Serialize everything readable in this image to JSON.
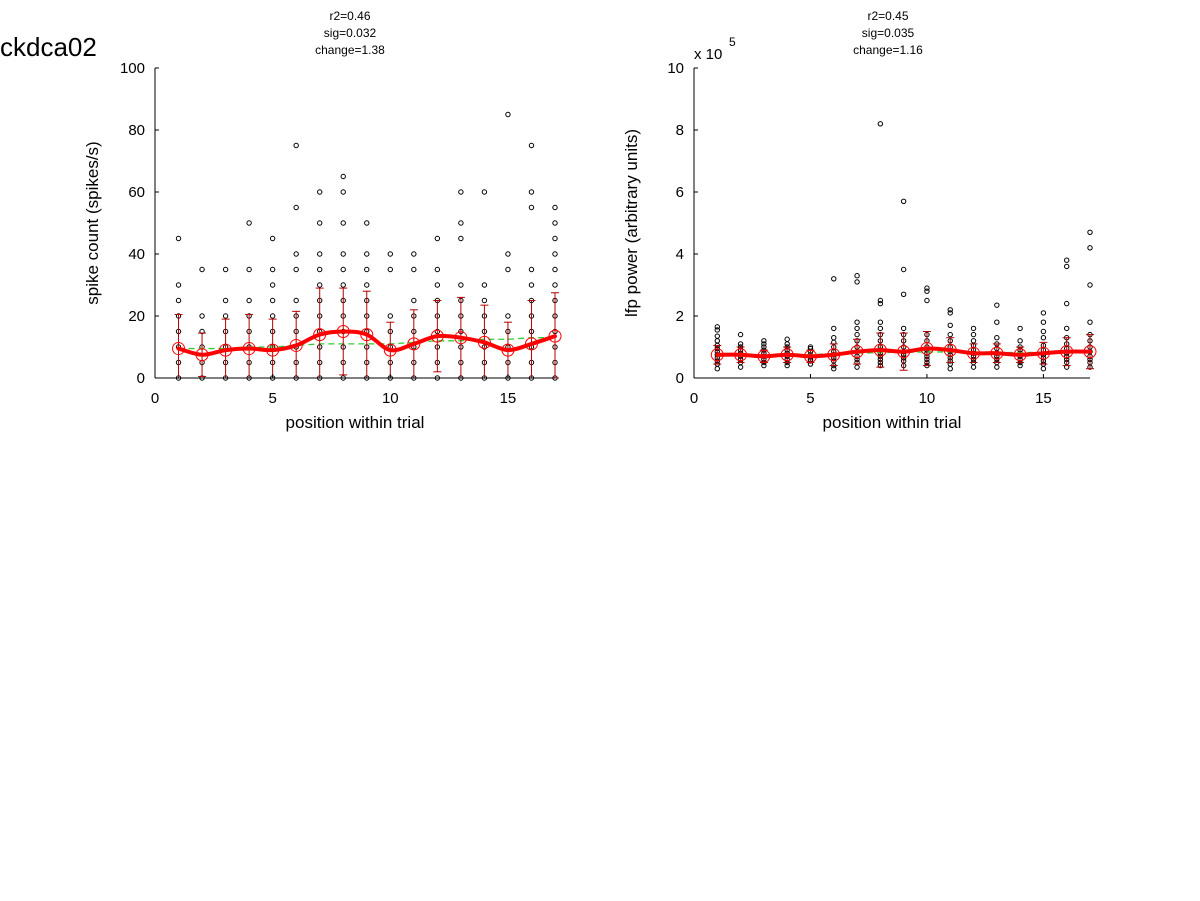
{
  "figure": {
    "title": "ckdca02"
  },
  "chart_data": [
    {
      "type": "scatter",
      "stats": [
        "r2=0.46",
        "sig=0.032",
        "change=1.38"
      ],
      "xlabel": "position within trial",
      "ylabel": "spike count (spikes/s)",
      "xlim": [
        0,
        17
      ],
      "ylim": [
        0,
        100
      ],
      "xticks": [
        0,
        5,
        10,
        15
      ],
      "yticks": [
        0,
        20,
        40,
        60,
        80,
        100
      ],
      "exponent_label": "",
      "positions": [
        1,
        2,
        3,
        4,
        5,
        6,
        7,
        8,
        9,
        10,
        11,
        12,
        13,
        14,
        15,
        16,
        17
      ],
      "means": [
        9.5,
        7.5,
        9,
        9.5,
        9,
        10.5,
        14,
        15,
        14,
        9,
        11,
        13.5,
        13,
        11.5,
        9,
        11,
        13.5
      ],
      "sd": [
        11,
        7,
        10,
        11,
        10,
        11,
        15,
        14,
        14,
        9,
        11,
        11.5,
        13,
        12,
        9,
        14,
        14
      ],
      "trend": [
        9.5,
        9.5,
        9.5,
        10,
        10,
        10.5,
        11,
        11,
        11,
        11,
        11.5,
        12,
        12,
        12.5,
        12.5,
        13,
        13
      ],
      "observations": [
        [
          0,
          5,
          10,
          15,
          20,
          25,
          30,
          45
        ],
        [
          0,
          5,
          10,
          15,
          20,
          35
        ],
        [
          0,
          5,
          10,
          15,
          20,
          25,
          35
        ],
        [
          0,
          5,
          10,
          15,
          20,
          25,
          35,
          50
        ],
        [
          0,
          5,
          10,
          15,
          20,
          25,
          30,
          35,
          45
        ],
        [
          0,
          5,
          10,
          15,
          20,
          25,
          35,
          40,
          55,
          75
        ],
        [
          0,
          5,
          10,
          15,
          20,
          25,
          30,
          35,
          40,
          50,
          60
        ],
        [
          0,
          5,
          10,
          15,
          20,
          25,
          30,
          35,
          40,
          50,
          60,
          65
        ],
        [
          0,
          5,
          10,
          15,
          20,
          25,
          30,
          35,
          40,
          50
        ],
        [
          0,
          5,
          10,
          15,
          20,
          35,
          40
        ],
        [
          0,
          5,
          10,
          15,
          20,
          25,
          35,
          40
        ],
        [
          0,
          5,
          10,
          15,
          20,
          25,
          30,
          35,
          45
        ],
        [
          0,
          5,
          10,
          15,
          20,
          25,
          30,
          45,
          50,
          60
        ],
        [
          0,
          5,
          10,
          15,
          20,
          25,
          30,
          60
        ],
        [
          0,
          5,
          10,
          15,
          20,
          35,
          40,
          85
        ],
        [
          0,
          5,
          10,
          15,
          20,
          25,
          30,
          35,
          55,
          60,
          75
        ],
        [
          0,
          5,
          10,
          15,
          20,
          25,
          30,
          35,
          40,
          45,
          50,
          55
        ]
      ],
      "colors": {
        "mean_line": "#ff0000",
        "error_bar": "#b40000",
        "trend_line": "#33cc33",
        "points": "#000000"
      }
    },
    {
      "type": "scatter",
      "stats": [
        "r2=0.45",
        "sig=0.035",
        "change=1.16"
      ],
      "xlabel": "position within trial",
      "ylabel": "lfp power (arbitrary units)",
      "xlim": [
        0,
        17
      ],
      "ylim": [
        0,
        10
      ],
      "xticks": [
        0,
        5,
        10,
        15
      ],
      "yticks": [
        0,
        2,
        4,
        6,
        8,
        10
      ],
      "exponent_label": "x 10",
      "exponent_power": "5",
      "positions": [
        1,
        2,
        3,
        4,
        5,
        6,
        7,
        8,
        9,
        10,
        11,
        12,
        13,
        14,
        15,
        16,
        17
      ],
      "means": [
        0.75,
        0.75,
        0.7,
        0.75,
        0.7,
        0.75,
        0.85,
        0.9,
        0.85,
        0.95,
        0.9,
        0.8,
        0.8,
        0.75,
        0.8,
        0.85,
        0.85
      ],
      "sd": [
        0.3,
        0.25,
        0.2,
        0.25,
        0.2,
        0.35,
        0.4,
        0.55,
        0.6,
        0.55,
        0.4,
        0.3,
        0.3,
        0.25,
        0.35,
        0.45,
        0.55
      ],
      "trend": [
        0.7,
        0.72,
        0.74,
        0.75,
        0.76,
        0.78,
        0.8,
        0.82,
        0.83,
        0.84,
        0.84,
        0.83,
        0.82,
        0.82,
        0.83,
        0.84,
        0.86
      ],
      "observations": [
        [
          0.3,
          0.45,
          0.55,
          0.65,
          0.75,
          0.85,
          0.95,
          1.05,
          1.2,
          1.35,
          1.55,
          1.65
        ],
        [
          0.35,
          0.5,
          0.6,
          0.7,
          0.8,
          0.9,
          1.0,
          1.1,
          1.4
        ],
        [
          0.4,
          0.5,
          0.6,
          0.7,
          0.8,
          0.9,
          1.0,
          1.1,
          1.2
        ],
        [
          0.4,
          0.5,
          0.6,
          0.7,
          0.8,
          0.9,
          1.0,
          1.1,
          1.25
        ],
        [
          0.45,
          0.55,
          0.6,
          0.7,
          0.75,
          0.85,
          0.95,
          1.0
        ],
        [
          0.3,
          0.4,
          0.55,
          0.65,
          0.75,
          0.85,
          1.0,
          1.15,
          1.3,
          1.6,
          3.2
        ],
        [
          0.35,
          0.5,
          0.6,
          0.7,
          0.85,
          1.0,
          1.2,
          1.4,
          1.6,
          1.8,
          3.1,
          3.3
        ],
        [
          0.4,
          0.5,
          0.6,
          0.7,
          0.8,
          0.9,
          1.0,
          1.2,
          1.4,
          1.6,
          1.8,
          2.4,
          2.5,
          8.2
        ],
        [
          0.4,
          0.55,
          0.65,
          0.75,
          0.85,
          1.0,
          1.2,
          1.4,
          1.6,
          2.7,
          3.5,
          5.7
        ],
        [
          0.4,
          0.5,
          0.6,
          0.7,
          0.8,
          0.9,
          1.0,
          1.2,
          1.4,
          2.5,
          2.8,
          2.9
        ],
        [
          0.3,
          0.45,
          0.55,
          0.65,
          0.75,
          0.85,
          1.0,
          1.2,
          1.4,
          1.7,
          2.1,
          2.2
        ],
        [
          0.35,
          0.5,
          0.6,
          0.7,
          0.8,
          0.9,
          1.05,
          1.2,
          1.4,
          1.6
        ],
        [
          0.35,
          0.5,
          0.6,
          0.7,
          0.8,
          0.95,
          1.1,
          1.3,
          1.8,
          2.35
        ],
        [
          0.4,
          0.5,
          0.6,
          0.7,
          0.8,
          0.9,
          1.0,
          1.2,
          1.6
        ],
        [
          0.3,
          0.45,
          0.55,
          0.65,
          0.75,
          0.9,
          1.05,
          1.3,
          1.5,
          1.8,
          2.1
        ],
        [
          0.35,
          0.5,
          0.6,
          0.7,
          0.8,
          0.95,
          1.1,
          1.3,
          1.6,
          2.4,
          3.6,
          3.8
        ],
        [
          0.35,
          0.5,
          0.6,
          0.7,
          0.85,
          1.0,
          1.2,
          1.4,
          1.8,
          3.0,
          4.2,
          4.7
        ]
      ],
      "colors": {
        "mean_line": "#ff0000",
        "error_bar": "#b40000",
        "trend_line": "#33cc33",
        "points": "#000000"
      }
    }
  ]
}
